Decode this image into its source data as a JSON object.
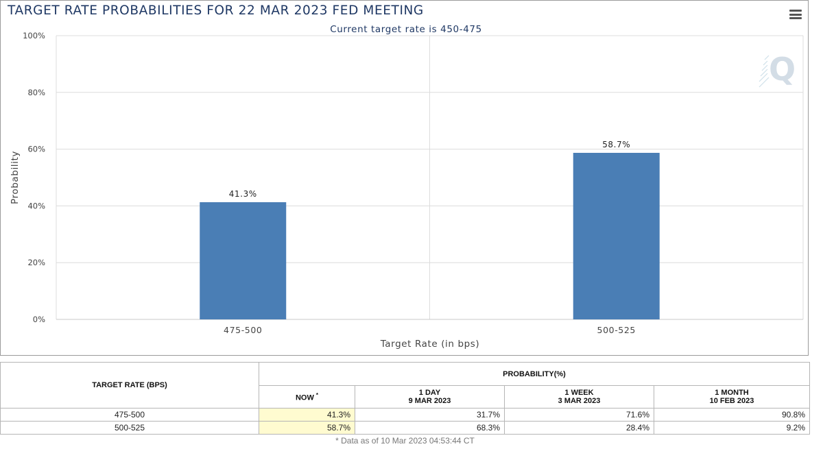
{
  "title": "TARGET RATE PROBABILITIES FOR 22 MAR 2023 FED MEETING",
  "chart_data": {
    "type": "bar",
    "title": "TARGET RATE PROBABILITIES FOR 22 MAR 2023 FED MEETING",
    "subtitle": "Current target rate is 450-475",
    "xlabel": "Target Rate (in bps)",
    "ylabel": "Probability",
    "categories": [
      "475-500",
      "500-525"
    ],
    "values": [
      41.3,
      58.7
    ],
    "data_labels": [
      "41.3%",
      "58.7%"
    ],
    "ylim": [
      0,
      100
    ],
    "yticks": [
      0,
      20,
      40,
      60,
      80,
      100
    ],
    "ytick_labels": [
      "0%",
      "20%",
      "40%",
      "60%",
      "80%",
      "100%"
    ],
    "grid": true,
    "bar_color": "#4a7eb5"
  },
  "table": {
    "rate_header": "TARGET RATE (BPS)",
    "prob_header": "PROBABILITY(%)",
    "col_now": "NOW",
    "col_now_mark": "*",
    "col_1day_a": "1 DAY",
    "col_1day_b": "9 MAR 2023",
    "col_1week_a": "1 WEEK",
    "col_1week_b": "3 MAR 2023",
    "col_1month_a": "1 MONTH",
    "col_1month_b": "10 FEB 2023",
    "rows": [
      {
        "rate": "475-500",
        "now": "41.3%",
        "day": "31.7%",
        "week": "71.6%",
        "month": "90.8%"
      },
      {
        "rate": "500-525",
        "now": "58.7%",
        "day": "68.3%",
        "week": "28.4%",
        "month": "9.2%"
      }
    ],
    "footnote": "* Data as of 10 Mar 2023 04:53:44 CT"
  }
}
